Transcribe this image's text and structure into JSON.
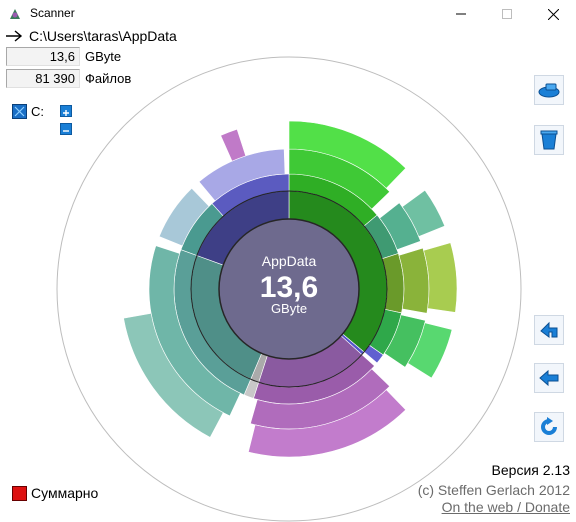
{
  "window": {
    "title": "Scanner"
  },
  "path": {
    "text": "C:\\Users\\taras\\AppData"
  },
  "stats": {
    "size_value": "13,6",
    "size_unit": "GByte",
    "files_value": "81 390",
    "files_unit": "Файлов"
  },
  "drive": {
    "label": "C:"
  },
  "center": {
    "name": "AppData",
    "value": "13,6",
    "unit": "GByte"
  },
  "footer": {
    "version": "Версия 2.13",
    "copyright": "(c) Steffen Gerlach 2012",
    "link": "On the web / Donate"
  },
  "summary": {
    "label": "Суммарно"
  },
  "icons": {
    "app": "scanner-app-icon",
    "minimize": "minimize-icon",
    "maximize": "maximize-icon",
    "close": "close-icon",
    "path_arrow": "arrow-right-icon",
    "drive": "hard-drive-icon",
    "expand": "plus-icon",
    "collapse": "minus-icon",
    "tool_1": "eraser-icon",
    "tool_2": "trash-icon",
    "tool_3": "up-folder-icon",
    "tool_4": "back-arrow-icon",
    "tool_5": "refresh-icon"
  },
  "colors": {
    "center": "#6e6a8e",
    "ring_green": "#2e8b22",
    "ring_purple": "#8c5aa0",
    "ring_teal": "#4d8f86",
    "ring_navy": "#3a3c82",
    "accent_blue": "#1a7fd6",
    "summary_red": "#dd1111"
  },
  "sunburst": {
    "rings": [
      {
        "level": 1,
        "segments": [
          {
            "start": 0,
            "end": 130,
            "color": "#258a1d"
          },
          {
            "start": 130,
            "end": 132,
            "color": "#5555c8"
          },
          {
            "start": 132,
            "end": 198,
            "color": "#8a5aa0"
          },
          {
            "start": 198,
            "end": 203,
            "color": "#aaaaaa"
          },
          {
            "start": 203,
            "end": 290,
            "color": "#4f8f88"
          },
          {
            "start": 290,
            "end": 360,
            "color": "#3e3f86"
          }
        ]
      },
      {
        "level": 2,
        "segments": [
          {
            "start": 0,
            "end": 50,
            "color": "#2fae25"
          },
          {
            "start": 50,
            "end": 72,
            "color": "#3f9a72"
          },
          {
            "start": 72,
            "end": 102,
            "color": "#6a9a2a"
          },
          {
            "start": 102,
            "end": 125,
            "color": "#2fa84a"
          },
          {
            "start": 125,
            "end": 130,
            "color": "#6060d0"
          },
          {
            "start": 132,
            "end": 198,
            "color": "#9a5caa"
          },
          {
            "start": 198,
            "end": 203,
            "color": "#c8c8c8"
          },
          {
            "start": 203,
            "end": 290,
            "color": "#5a9f98"
          },
          {
            "start": 290,
            "end": 318,
            "color": "#4a9a90"
          },
          {
            "start": 318,
            "end": 360,
            "color": "#5b5bc0"
          }
        ]
      },
      {
        "level": 3,
        "segments": [
          {
            "start": 0,
            "end": 46,
            "color": "#3fc936"
          },
          {
            "start": 52,
            "end": 70,
            "color": "#55b090"
          },
          {
            "start": 73,
            "end": 100,
            "color": "#8ab33a"
          },
          {
            "start": 103,
            "end": 124,
            "color": "#45c060"
          },
          {
            "start": 134,
            "end": 196,
            "color": "#b06cbc"
          },
          {
            "start": 205,
            "end": 288,
            "color": "#6fb6a8"
          },
          {
            "start": 292,
            "end": 316,
            "color": "#a8c8d8"
          },
          {
            "start": 320,
            "end": 358,
            "color": "#a8a8e6"
          }
        ]
      },
      {
        "level": 4,
        "segments": [
          {
            "start": 0,
            "end": 44,
            "color": "#52e048"
          },
          {
            "start": 54,
            "end": 68,
            "color": "#6fc0a2"
          },
          {
            "start": 74,
            "end": 98,
            "color": "#a8cc50"
          },
          {
            "start": 104,
            "end": 122,
            "color": "#58d870"
          },
          {
            "start": 136,
            "end": 194,
            "color": "#c27ccc"
          },
          {
            "start": 208,
            "end": 260,
            "color": "#8cc6b8"
          },
          {
            "start": 336,
            "end": 342,
            "color": "#c07ac8"
          }
        ]
      }
    ]
  }
}
